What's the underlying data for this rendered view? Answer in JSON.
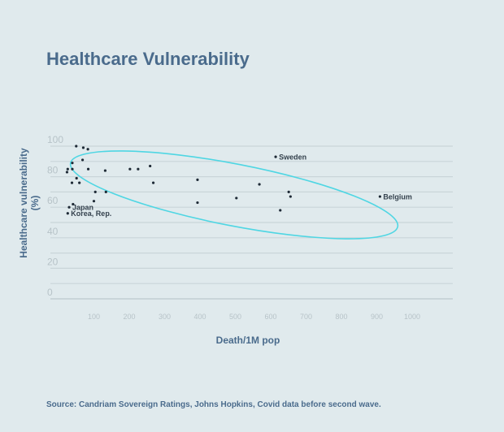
{
  "title": "Healthcare Vulnerability",
  "source": "Source: Candriam Sovereign Ratings, Johns Hopkins, Covid data before second wave.",
  "colors": {
    "background": "#e0eaed",
    "title": "#4a6b8c",
    "ellipse": "#4fd6e3",
    "points": "#1e2a36",
    "grid": "#c9d5d9",
    "ticks": "#b7c3c8"
  },
  "chart_data": {
    "type": "scatter",
    "title": "Healthcare Vulnerability",
    "xlabel": "Death/1M pop",
    "ylabel": "Healthcare vulnerability (%)",
    "xticks": [
      100,
      200,
      300,
      400,
      500,
      600,
      700,
      800,
      900,
      1000
    ],
    "yticks": [
      0,
      20,
      40,
      60,
      80,
      100
    ],
    "xlim": [
      0,
      1100
    ],
    "ylim": [
      0,
      100
    ],
    "grid": true,
    "annotation": "ellipse highlighting the main cluster",
    "points": [
      {
        "x": 50,
        "y": 100
      },
      {
        "x": 70,
        "y": 99
      },
      {
        "x": 83,
        "y": 98
      },
      {
        "x": 68,
        "y": 91
      },
      {
        "x": 39,
        "y": 89
      },
      {
        "x": 26,
        "y": 85
      },
      {
        "x": 24,
        "y": 83
      },
      {
        "x": 39,
        "y": 85
      },
      {
        "x": 84,
        "y": 85
      },
      {
        "x": 132,
        "y": 84
      },
      {
        "x": 202,
        "y": 85
      },
      {
        "x": 225,
        "y": 85
      },
      {
        "x": 259,
        "y": 87
      },
      {
        "x": 51,
        "y": 79
      },
      {
        "x": 38,
        "y": 76
      },
      {
        "x": 59,
        "y": 76
      },
      {
        "x": 268,
        "y": 76
      },
      {
        "x": 104,
        "y": 70
      },
      {
        "x": 134,
        "y": 70
      },
      {
        "x": 100,
        "y": 64
      },
      {
        "x": 393,
        "y": 78
      },
      {
        "x": 393,
        "y": 63
      },
      {
        "x": 503,
        "y": 66
      },
      {
        "x": 568,
        "y": 75
      },
      {
        "x": 627,
        "y": 58
      },
      {
        "x": 41,
        "y": 62
      },
      {
        "x": 651,
        "y": 70
      },
      {
        "x": 656,
        "y": 67
      },
      {
        "x": 30,
        "y": 60,
        "label": "Japan"
      },
      {
        "x": 26,
        "y": 56,
        "label": "Korea, Rep."
      },
      {
        "x": 614,
        "y": 93,
        "label": "Sweden"
      },
      {
        "x": 909,
        "y": 67,
        "label": "Belgium"
      }
    ]
  }
}
